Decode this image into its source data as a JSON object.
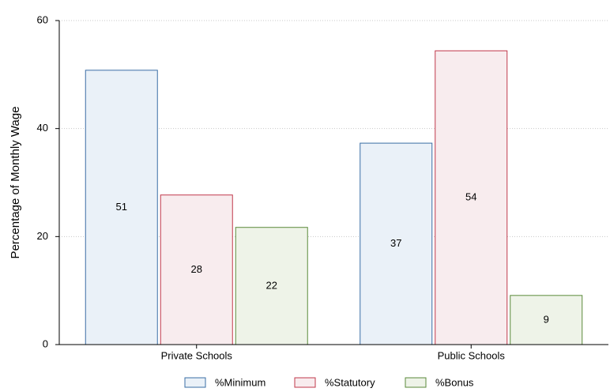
{
  "chart_data": {
    "type": "bar",
    "y_label": "Percentage of Monthly Wage",
    "categories": [
      "Private Schools",
      "Public Schools"
    ],
    "series": [
      {
        "name": "%Minimum",
        "color": "#eaf1f8",
        "edge": "#3a6ea5",
        "values": [
          50.8,
          37.3
        ],
        "value_labels": [
          "51",
          "37"
        ]
      },
      {
        "name": "%Statutory",
        "color": "#f8ecee",
        "edge": "#c0394b",
        "values": [
          27.7,
          54.4
        ],
        "value_labels": [
          "28",
          "54"
        ]
      },
      {
        "name": "%Bonus",
        "color": "#eef3e8",
        "edge": "#5a8a3a",
        "values": [
          21.7,
          9.1
        ],
        "value_labels": [
          "22",
          "9"
        ]
      }
    ],
    "ylim": [
      0,
      60
    ],
    "yticks": [
      0,
      20,
      40,
      60
    ],
    "grid": true
  }
}
